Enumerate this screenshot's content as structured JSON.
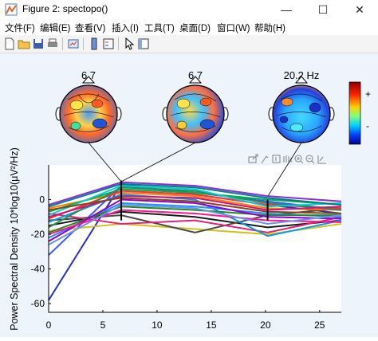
{
  "window": {
    "title": "Figure 2: spectopo()",
    "minimize": "—",
    "maximize": "☐",
    "close": "✕"
  },
  "menu": [
    "文件(F)",
    "编辑(E)",
    "查看(V)",
    "插入(I)",
    "工具(T)",
    "桌面(D)",
    "窗口(W)",
    "帮助(H)"
  ],
  "toolbar_icons": [
    "new-figure-icon",
    "open-file-icon",
    "save-icon",
    "print-icon",
    "link-plot-icon",
    "insert-colorbar-icon",
    "insert-legend-icon",
    "pointer-icon",
    "property-inspector-icon"
  ],
  "axes_toolbar_icons": [
    "export-icon",
    "brush-icon",
    "data-tips-icon",
    "pan-icon",
    "zoom-in-icon",
    "zoom-out-icon",
    "restore-view-icon"
  ],
  "topo": {
    "labels": [
      "6.7",
      "6.7",
      "20.2 Hz"
    ]
  },
  "colorbar": {
    "plus": "+",
    "minus": "-"
  },
  "chart_data": {
    "type": "line",
    "ylabel": "Power Spectral Density 10*log10(μV²/Hz)",
    "xlim": [
      0,
      27
    ],
    "ylim": [
      -65,
      20
    ],
    "x_ticks": [
      "0",
      "5",
      "10",
      "15",
      "20",
      "25"
    ],
    "y_ticks": [
      "0",
      "-20",
      "-40",
      "-60"
    ],
    "marker_freqs": [
      6.7,
      20.2
    ],
    "x": [
      0,
      6.7,
      13.5,
      20.2,
      27
    ],
    "series": [
      {
        "color": "#1f2fd0",
        "values": [
          -58,
          9,
          3,
          -3,
          -8
        ]
      },
      {
        "color": "#3b54ff",
        "values": [
          -32,
          8,
          4,
          -1,
          -6
        ]
      },
      {
        "color": "#1a1a1a",
        "values": [
          -15,
          -7,
          -10,
          -16,
          -12
        ]
      },
      {
        "color": "#d4c21c",
        "values": [
          -18,
          -14,
          -17,
          -20,
          -14
        ]
      },
      {
        "color": "#4a4a4a",
        "values": [
          -12,
          -9,
          -19,
          -9,
          -5
        ]
      },
      {
        "color": "#e0227a",
        "values": [
          -8,
          -14,
          -12,
          -19,
          -10
        ]
      },
      {
        "color": "#ff7a00",
        "values": [
          -5,
          4,
          2,
          -5,
          -6
        ]
      },
      {
        "color": "#00b050",
        "values": [
          -7,
          6,
          4,
          0,
          -3
        ]
      },
      {
        "color": "#8a2be2",
        "values": [
          -3,
          10,
          8,
          2,
          -1
        ]
      },
      {
        "color": "#ff3030",
        "values": [
          -11,
          5,
          3,
          -3,
          -5
        ]
      },
      {
        "color": "#00a0e0",
        "values": [
          -13,
          3,
          0,
          -21,
          -12
        ]
      },
      {
        "color": "#2e8b57",
        "values": [
          -16,
          7,
          5,
          -2,
          -6
        ]
      },
      {
        "color": "#c71585",
        "values": [
          -10,
          2,
          1,
          -6,
          -4
        ]
      },
      {
        "color": "#1e90ff",
        "values": [
          -22,
          -2,
          -4,
          -8,
          -10
        ]
      },
      {
        "color": "#228b22",
        "values": [
          -19,
          -4,
          -6,
          -9,
          -9
        ]
      },
      {
        "color": "#9400d3",
        "values": [
          -24,
          0,
          -2,
          -10,
          -11
        ]
      },
      {
        "color": "#00ced1",
        "values": [
          -9,
          8,
          6,
          -4,
          -2
        ]
      },
      {
        "color": "#8b4513",
        "values": [
          -6,
          1,
          -1,
          -7,
          -8
        ]
      },
      {
        "color": "#ff1493",
        "values": [
          -20,
          -6,
          -8,
          -12,
          -13
        ]
      },
      {
        "color": "#6495ed",
        "values": [
          -26,
          -3,
          -5,
          -14,
          -9
        ]
      },
      {
        "color": "#008080",
        "values": [
          -4,
          9,
          7,
          1,
          -3
        ]
      }
    ]
  }
}
